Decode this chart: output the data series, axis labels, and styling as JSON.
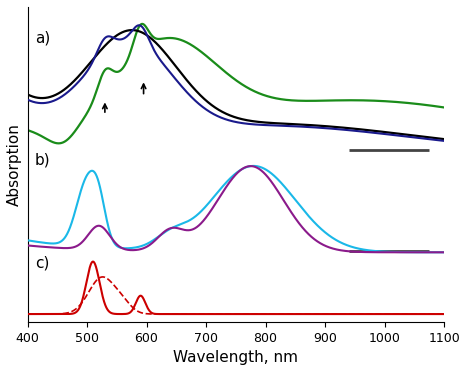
{
  "xlim": [
    400,
    1100
  ],
  "xlabel": "Wavelength, nm",
  "ylabel": "Absorption",
  "label_a": "a)",
  "label_b": "b)",
  "label_c": "c)",
  "bg_color": "#ffffff",
  "axis_fontsize": 11,
  "label_fontsize": 11,
  "colors": {
    "black": "#000000",
    "dark_blue": "#1a1a8c",
    "green": "#1a8c1a",
    "cyan": "#1ab8e8",
    "purple": "#8B1a8B",
    "red": "#cc0000"
  }
}
